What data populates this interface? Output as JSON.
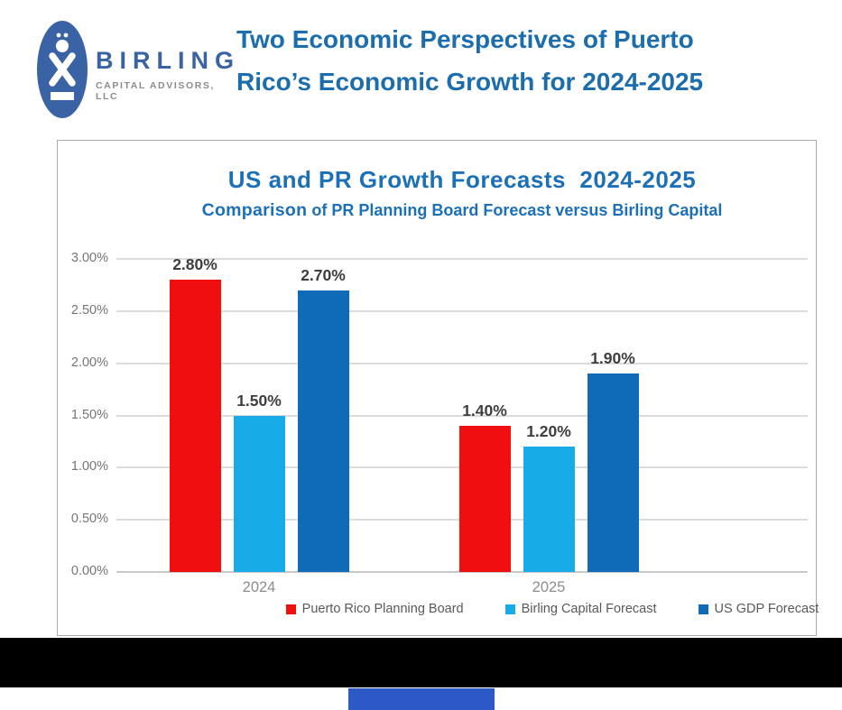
{
  "header": {
    "logo": {
      "brand": "BIRLING",
      "sub": "CAPITAL ADVISORS, LLC"
    },
    "title_line1": "Two Economic Perspectives of Puerto",
    "title_line2": "Rico’s Economic Growth for 2024-2025"
  },
  "chart_data": {
    "type": "bar",
    "title": "US and PR Growth Forecasts  2024-2025",
    "subtitle_bold": "Comparison",
    "subtitle_rest": " of PR Planning Board Forecast versus Birling Capital",
    "categories": [
      "2024",
      "2025"
    ],
    "series": [
      {
        "name": "Puerto Rico Planning Board",
        "color": "#F10E0E",
        "values": [
          2.8,
          1.4
        ]
      },
      {
        "name": "Birling Capital Forecast",
        "color": "#17ABE8",
        "values": [
          1.5,
          1.2
        ]
      },
      {
        "name": "US GDP Forecast",
        "color": "#0F6BB8",
        "values": [
          2.7,
          1.9
        ]
      }
    ],
    "value_labels": [
      [
        "2.80%",
        "1.50%",
        "2.70%"
      ],
      [
        "1.40%",
        "1.20%",
        "1.90%"
      ]
    ],
    "y_tick_labels": [
      "0.00%",
      "0.50%",
      "1.00%",
      "1.50%",
      "2.00%",
      "2.50%",
      "3.00%"
    ],
    "ylim": [
      0,
      3.0
    ],
    "ytick_step": 0.5,
    "xlabel": "",
    "ylabel": "",
    "grid": true,
    "legend_position": "bottom"
  },
  "colors": {
    "header_title_blue": "#1C6DAD",
    "chart_title_blue": "#1C70B8",
    "logo_blue": "#3A63A5",
    "logo_sub_gray": "#8C8C8C",
    "grid_gray": "#DCDCDC",
    "axis_text_gray": "#757575",
    "value_label_gray": "#3E3E3E",
    "category_label_gray": "#8C8C8C",
    "legend_text_gray": "#595959",
    "frame_border_gray": "#ACACAC",
    "bottom_band_black": "#000000",
    "bottom_accent_blue": "#2D59C6"
  }
}
